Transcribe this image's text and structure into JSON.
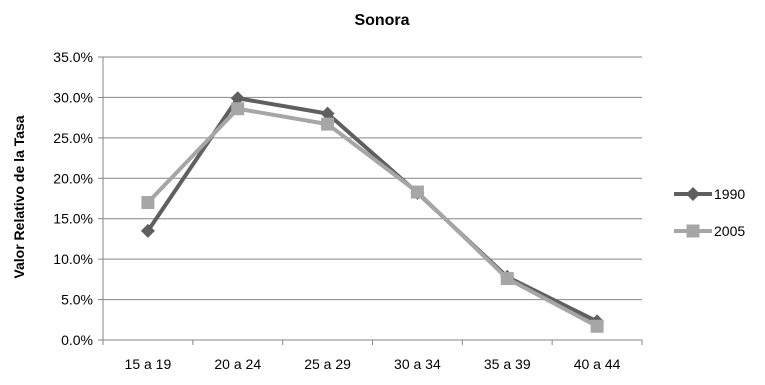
{
  "chart_data": {
    "type": "line",
    "title": "Sonora",
    "ylabel": "Valor Relativo de la Tasa",
    "xlabel": "",
    "categories": [
      "15 a 19",
      "20 a 24",
      "25 a 29",
      "30 a 34",
      "35 a 39",
      "40 a 44"
    ],
    "ylim": [
      0,
      35
    ],
    "yticks": [
      0,
      5,
      10,
      15,
      20,
      25,
      30,
      35
    ],
    "ytick_labels": [
      "0.0%",
      "5.0%",
      "10.0%",
      "15.0%",
      "20.0%",
      "25.0%",
      "30.0%",
      "35.0%"
    ],
    "grid": true,
    "legend_position": "right",
    "series": [
      {
        "name": "1990",
        "values": [
          13.5,
          29.9,
          28.0,
          18.2,
          7.8,
          2.3
        ],
        "color": "#5f5f5f",
        "marker": "diamond"
      },
      {
        "name": "2005",
        "values": [
          17.0,
          28.6,
          26.7,
          18.3,
          7.6,
          1.7
        ],
        "color": "#a6a6a6",
        "marker": "square"
      }
    ]
  }
}
